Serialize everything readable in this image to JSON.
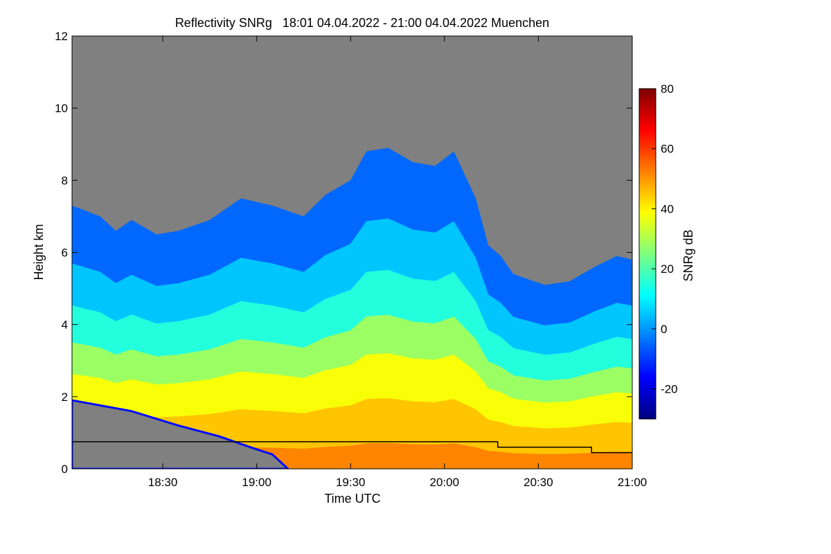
{
  "chart_data": {
    "type": "heatmap",
    "title": "Reflectivity SNRg   18:01 04.04.2022 - 21:00 04.04.2022 Muenchen",
    "xlabel": "Time UTC",
    "ylabel": "Height km",
    "x_range_minutes": [
      1081,
      1260
    ],
    "x_ticks": [
      {
        "minute": 1110,
        "label": "18:30"
      },
      {
        "minute": 1140,
        "label": "19:00"
      },
      {
        "minute": 1170,
        "label": "19:30"
      },
      {
        "minute": 1200,
        "label": "20:00"
      },
      {
        "minute": 1230,
        "label": "20:30"
      },
      {
        "minute": 1260,
        "label": "21:00"
      }
    ],
    "ylim": [
      0,
      12
    ],
    "y_ticks": [
      {
        "value": 0,
        "label": "0"
      },
      {
        "value": 2,
        "label": "2"
      },
      {
        "value": 4,
        "label": "4"
      },
      {
        "value": 6,
        "label": "6"
      },
      {
        "value": 8,
        "label": "8"
      },
      {
        "value": 10,
        "label": "10"
      },
      {
        "value": 12,
        "label": "12"
      }
    ],
    "colorbar": {
      "label": "SNRg dB",
      "range": [
        -30,
        80
      ],
      "ticks": [
        {
          "value": -20,
          "label": "-20"
        },
        {
          "value": 0,
          "label": "0"
        },
        {
          "value": 20,
          "label": "20"
        },
        {
          "value": 40,
          "label": "40"
        },
        {
          "value": 60,
          "label": "60"
        },
        {
          "value": 80,
          "label": "80"
        }
      ],
      "colormap": [
        "#00007f",
        "#0000ff",
        "#007fff",
        "#00ffff",
        "#7fff7f",
        "#ffff00",
        "#ff7f00",
        "#ff0000",
        "#7f0000"
      ]
    },
    "no_signal_color": "#808080",
    "cloud_top_km": [
      [
        1081,
        7.3
      ],
      [
        1090,
        7.0
      ],
      [
        1095,
        6.6
      ],
      [
        1100,
        6.9
      ],
      [
        1108,
        6.5
      ],
      [
        1115,
        6.6
      ],
      [
        1125,
        6.9
      ],
      [
        1135,
        7.5
      ],
      [
        1145,
        7.3
      ],
      [
        1155,
        7.0
      ],
      [
        1162,
        7.6
      ],
      [
        1170,
        8.0
      ],
      [
        1175,
        8.8
      ],
      [
        1182,
        8.9
      ],
      [
        1190,
        8.5
      ],
      [
        1197,
        8.4
      ],
      [
        1203,
        8.8
      ],
      [
        1210,
        7.5
      ],
      [
        1214,
        6.2
      ],
      [
        1218,
        5.9
      ],
      [
        1222,
        5.4
      ],
      [
        1232,
        5.1
      ],
      [
        1240,
        5.2
      ],
      [
        1248,
        5.6
      ],
      [
        1255,
        5.9
      ],
      [
        1260,
        5.8
      ]
    ],
    "lower_band_top_km": [
      [
        1081,
        1.9
      ],
      [
        1100,
        1.6
      ],
      [
        1115,
        1.2
      ],
      [
        1128,
        0.9
      ],
      [
        1138,
        0.6
      ],
      [
        1145,
        0.4
      ],
      [
        1150,
        0.0
      ]
    ],
    "snr_bands": [
      {
        "snr_db": -5,
        "top_frac": 1.0
      },
      {
        "snr_db": 5,
        "top_frac": 0.78
      },
      {
        "snr_db": 15,
        "top_frac": 0.62
      },
      {
        "snr_db": 28,
        "top_frac": 0.48
      },
      {
        "snr_db": 38,
        "top_frac": 0.36
      },
      {
        "snr_db": 45,
        "top_frac": 0.22
      },
      {
        "snr_db": 52,
        "top_frac": 0.08
      }
    ],
    "boundary_line_km": [
      [
        1081,
        0.75
      ],
      [
        1217,
        0.75
      ],
      [
        1217,
        0.6
      ],
      [
        1247,
        0.6
      ],
      [
        1247,
        0.45
      ],
      [
        1260,
        0.45
      ]
    ]
  }
}
